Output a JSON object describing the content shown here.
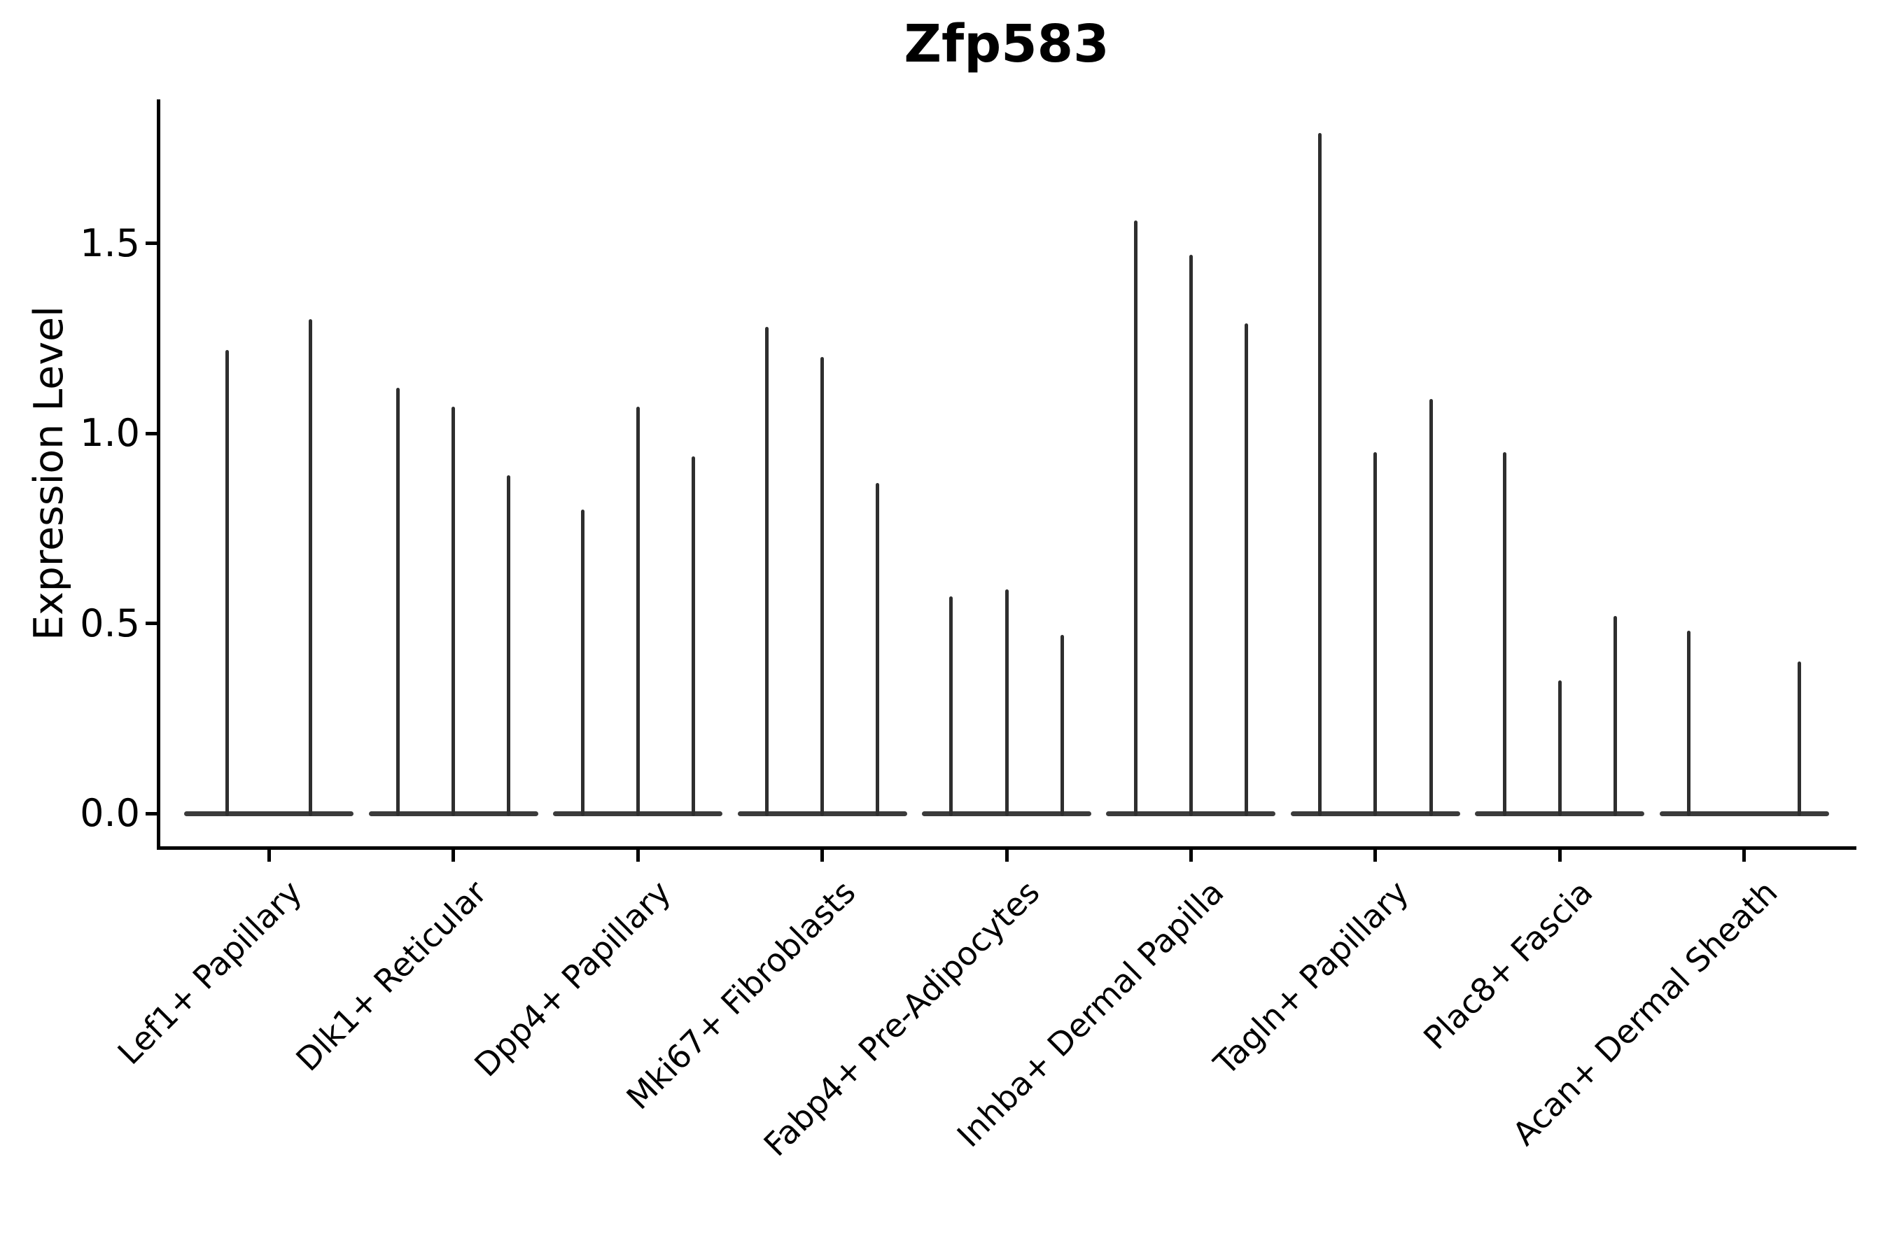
{
  "figure": {
    "background": "#ffffff"
  },
  "chart_data": {
    "type": "violin",
    "title": "Zfp583",
    "ylabel": "Expression Level",
    "xlabel": "",
    "legend_position": "none",
    "grid": false,
    "ylim": [
      -0.09,
      1.88
    ],
    "yticks": [
      0.0,
      0.5,
      1.0,
      1.5
    ],
    "ytick_labels": [
      "0.0",
      "0.5",
      "1.0",
      "1.5"
    ],
    "categories": [
      "Lef1+ Papillary",
      "Dlk1+ Reticular",
      "Dpp4+ Papillary",
      "Mki67+ Fibroblasts",
      "Fabp4+ Pre-Adipocytes",
      "Inhba+ Dermal Papilla",
      "Tagln+ Papillary",
      "Plac8+ Fascia",
      "Acan+ Dermal Sheath"
    ],
    "groups": [
      {
        "category": "Lef1+ Papillary",
        "violins": [
          {
            "offset": -0.225,
            "peak": 1.22
          },
          {
            "offset": 0.225,
            "peak": 1.3
          }
        ]
      },
      {
        "category": "Dlk1+ Reticular",
        "violins": [
          {
            "offset": -0.3,
            "peak": 1.12
          },
          {
            "offset": 0.0,
            "peak": 1.07
          },
          {
            "offset": 0.3,
            "peak": 0.89
          }
        ]
      },
      {
        "category": "Dpp4+ Papillary",
        "violins": [
          {
            "offset": -0.3,
            "peak": 0.8
          },
          {
            "offset": 0.0,
            "peak": 1.07
          },
          {
            "offset": 0.3,
            "peak": 0.94
          }
        ]
      },
      {
        "category": "Mki67+ Fibroblasts",
        "violins": [
          {
            "offset": -0.3,
            "peak": 1.28
          },
          {
            "offset": 0.0,
            "peak": 1.2
          },
          {
            "offset": 0.3,
            "peak": 0.87
          }
        ]
      },
      {
        "category": "Fabp4+ Pre-Adipocytes",
        "violins": [
          {
            "offset": -0.3,
            "peak": 0.57
          },
          {
            "offset": 0.0,
            "peak": 0.59
          },
          {
            "offset": 0.3,
            "peak": 0.47
          }
        ]
      },
      {
        "category": "Inhba+ Dermal Papilla",
        "violins": [
          {
            "offset": -0.3,
            "peak": 1.56
          },
          {
            "offset": 0.0,
            "peak": 1.47
          },
          {
            "offset": 0.3,
            "peak": 1.29
          }
        ]
      },
      {
        "category": "Tagln+ Papillary",
        "violins": [
          {
            "offset": -0.3,
            "peak": 1.79
          },
          {
            "offset": 0.0,
            "peak": 0.95
          },
          {
            "offset": 0.3,
            "peak": 1.09
          }
        ]
      },
      {
        "category": "Plac8+ Fascia",
        "violins": [
          {
            "offset": -0.3,
            "peak": 0.95
          },
          {
            "offset": 0.0,
            "peak": 0.35
          },
          {
            "offset": 0.3,
            "peak": 0.52
          }
        ]
      },
      {
        "category": "Acan+ Dermal Sheath",
        "violins": [
          {
            "offset": -0.3,
            "peak": 0.48
          },
          {
            "offset": 0.3,
            "peak": 0.4
          }
        ]
      }
    ],
    "colors": {
      "violin": "#2e2e2e",
      "violin_base": "#3b3b3b",
      "axis": "#000000",
      "text": "#000000",
      "background": "#ffffff"
    }
  }
}
